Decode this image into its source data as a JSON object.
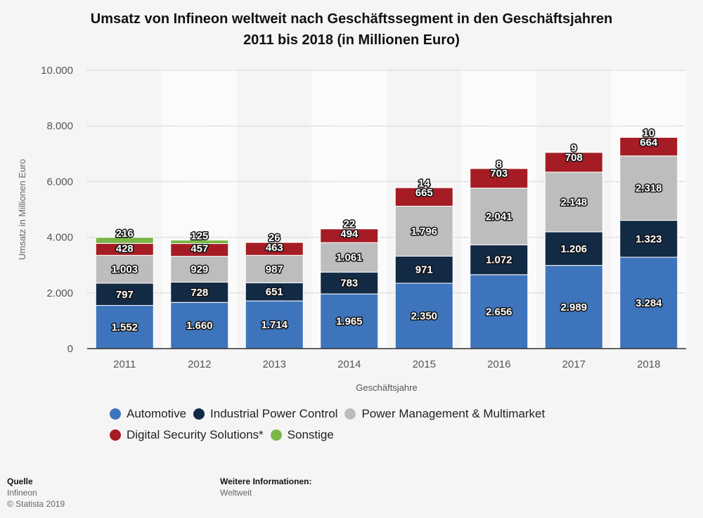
{
  "title_line1": "Umsatz von Infineon weltweit nach Geschäftssegment in den Geschäftsjahren",
  "title_line2": "2011 bis 2018 (in Millionen Euro)",
  "chart_data": {
    "type": "bar",
    "stacked": true,
    "categories": [
      "2011",
      "2012",
      "2013",
      "2014",
      "2015",
      "2016",
      "2017",
      "2018"
    ],
    "series": [
      {
        "name": "Automotive",
        "color": "#3e74bb",
        "values": [
          1552,
          1660,
          1714,
          1965,
          2350,
          2656,
          2989,
          3284
        ],
        "labels": [
          "1.552",
          "1.660",
          "1.714",
          "1.965",
          "2.350",
          "2.656",
          "2.989",
          "3.284"
        ]
      },
      {
        "name": "Industrial Power Control",
        "color": "#132a45",
        "values": [
          797,
          728,
          651,
          783,
          971,
          1072,
          1206,
          1323
        ],
        "labels": [
          "797",
          "728",
          "651",
          "783",
          "971",
          "1.072",
          "1.206",
          "1.323"
        ]
      },
      {
        "name": "Power Management & Multimarket",
        "color": "#bdbdbd",
        "values": [
          1003,
          929,
          987,
          1061,
          1796,
          2041,
          2148,
          2318
        ],
        "labels": [
          "1.003",
          "929",
          "987",
          "1.061",
          "1.796",
          "2.041",
          "2.148",
          "2.318"
        ]
      },
      {
        "name": "Digital Security Solutions*",
        "color": "#a61c24",
        "values": [
          428,
          457,
          463,
          494,
          665,
          703,
          708,
          664
        ],
        "labels": [
          "428",
          "457",
          "463",
          "494",
          "665",
          "703",
          "708",
          "664"
        ]
      },
      {
        "name": "Sonstige",
        "color": "#7ab648",
        "values": [
          216,
          125,
          26,
          22,
          14,
          8,
          9,
          10
        ],
        "labels": [
          "216",
          "125",
          "26",
          "22",
          "14",
          "8",
          "9",
          "10"
        ]
      }
    ],
    "ylabel": "Umsatz in Millionen Euro",
    "xlabel": "Geschäftsjahre",
    "ylim": [
      0,
      10000
    ],
    "yticks": [
      0,
      2000,
      4000,
      6000,
      8000,
      10000
    ],
    "ytick_labels": [
      "0",
      "2.000",
      "4.000",
      "6.000",
      "8.000",
      "10.000"
    ],
    "grid": true,
    "legend_position": "bottom"
  },
  "footer": {
    "source_heading": "Quelle",
    "source": "Infineon",
    "copyright": "© Statista 2019",
    "info_heading": "Weitere Informationen:",
    "info": "Weltweit"
  }
}
